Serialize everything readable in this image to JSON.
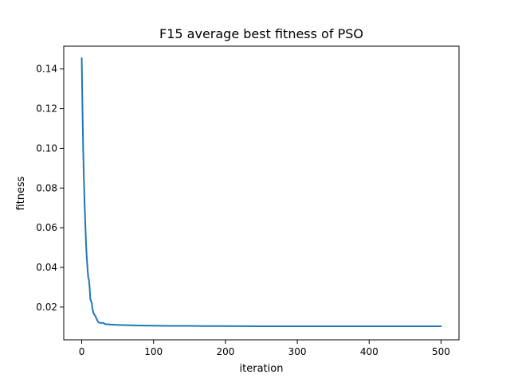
{
  "chart_data": {
    "type": "line",
    "title": "F15 average best fitness of PSO",
    "xlabel": "iteration",
    "ylabel": "fitness",
    "xlim": [
      -25,
      525
    ],
    "ylim": [
      0.0035,
      0.1515
    ],
    "xticks": [
      0,
      100,
      200,
      300,
      400,
      500
    ],
    "yticks": [
      0.02,
      0.04,
      0.06,
      0.08,
      0.1,
      0.12,
      0.14
    ],
    "ytick_labels": [
      "0.02",
      "0.04",
      "0.06",
      "0.08",
      "0.10",
      "0.12",
      "0.14"
    ],
    "grid": false,
    "line_color": "#1f77b4",
    "series": [
      {
        "x": [
          0,
          1,
          2,
          3,
          4,
          5,
          6,
          7,
          8,
          9,
          10,
          11,
          12,
          13,
          14,
          15,
          16,
          17,
          18,
          19,
          20,
          21,
          22,
          23,
          24,
          25,
          26,
          28,
          30,
          32,
          34,
          36,
          40,
          45,
          50,
          60,
          80,
          100,
          120,
          150,
          170,
          200,
          250,
          300,
          350,
          400,
          450,
          500
        ],
        "y": [
          0.1455,
          0.121,
          0.1,
          0.085,
          0.072,
          0.062,
          0.052,
          0.045,
          0.04,
          0.035,
          0.034,
          0.03,
          0.024,
          0.023,
          0.022,
          0.019,
          0.0175,
          0.0165,
          0.016,
          0.0155,
          0.0145,
          0.014,
          0.013,
          0.0125,
          0.0122,
          0.012,
          0.012,
          0.012,
          0.012,
          0.0115,
          0.0113,
          0.0113,
          0.0112,
          0.0111,
          0.011,
          0.0109,
          0.0107,
          0.0106,
          0.0105,
          0.0105,
          0.0104,
          0.0104,
          0.0103,
          0.0103,
          0.0103,
          0.0103,
          0.0103,
          0.0103
        ]
      }
    ]
  }
}
